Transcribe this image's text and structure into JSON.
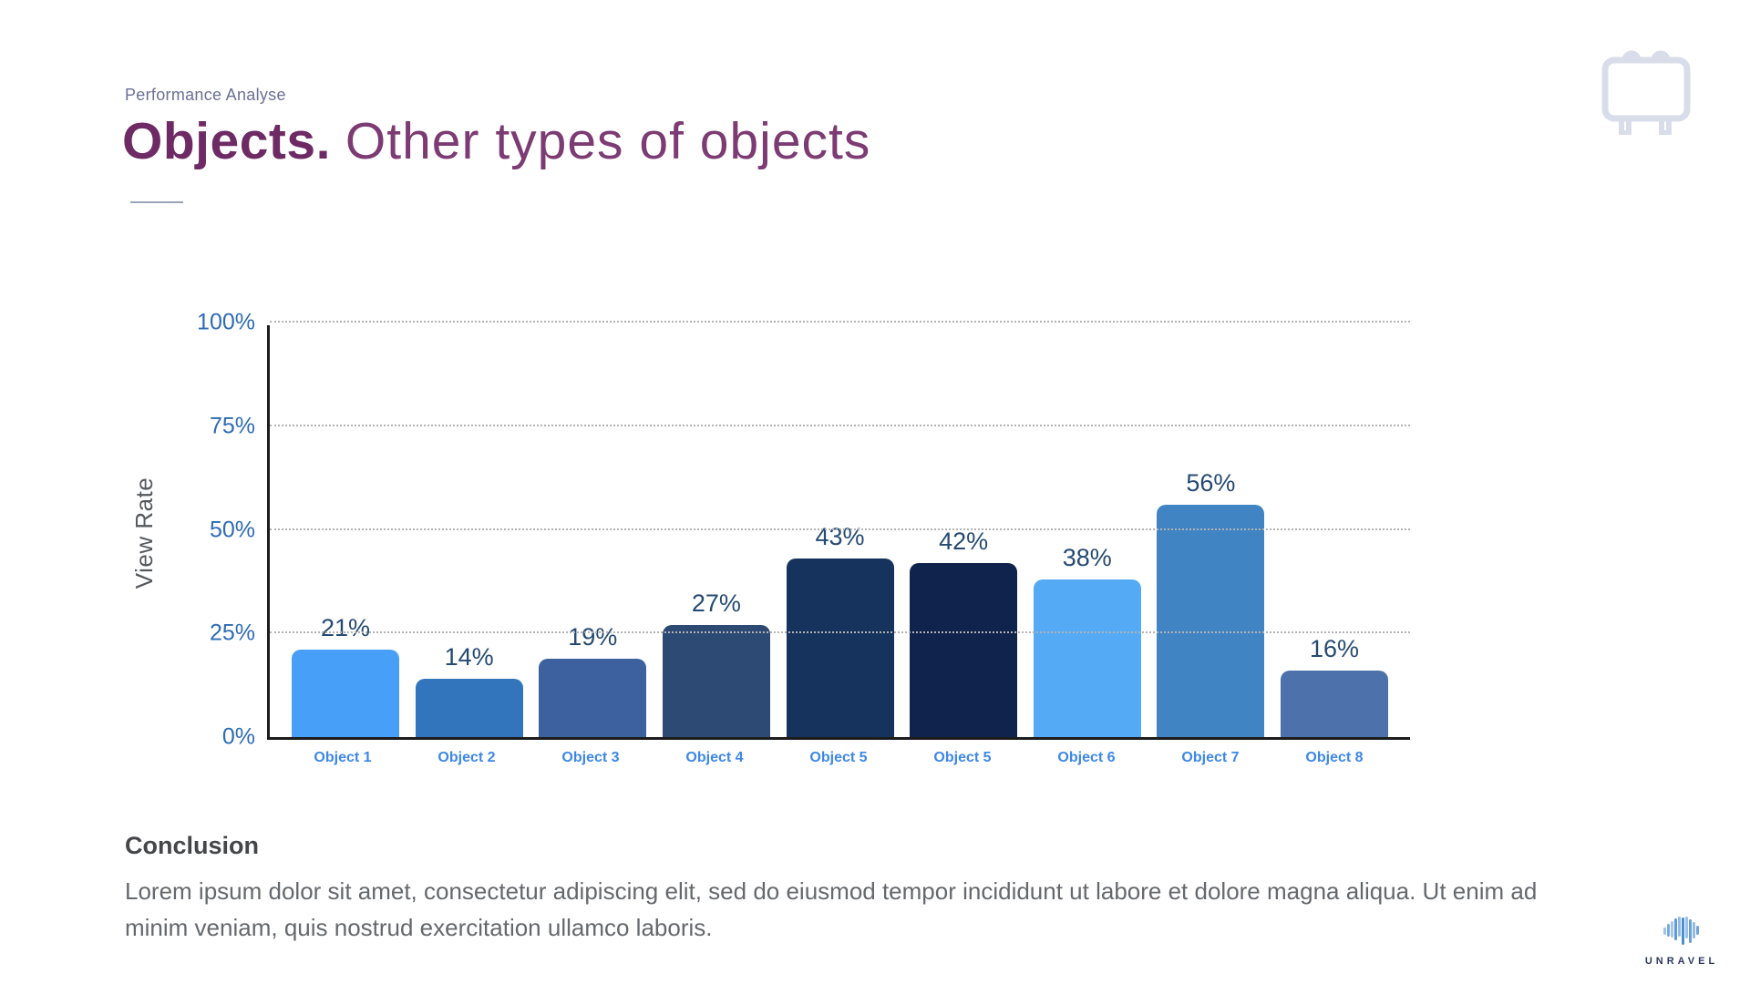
{
  "slide": {
    "eyebrow": "Performance Analyse",
    "title_bold": "Objects.",
    "title_light": "Other types of objects",
    "conclusion_heading": "Conclusion",
    "conclusion_body": "Lorem ipsum dolor sit amet, consectetur adipiscing elit, sed do eiusmod tempor incididunt ut labore et dolore magna aliqua. Ut enim ad minim veniam, quis nostrud exercitation ullamco laboris.",
    "logo_text": "UNRAVEL"
  },
  "icons": {
    "top_right": "whiteboard-icon",
    "bottom_right": "unravel-brain-icon"
  },
  "colors": {
    "background": "#ffffff",
    "title_bold": "#6e2a64",
    "title_light": "#7d3b74",
    "eyebrow": "#6b7094",
    "axis": "#1c1c1c",
    "gridline": "#b3b3b3",
    "ytick_label": "#2d6bb4",
    "value_label": "#254a72",
    "category_label": "#3d87e8",
    "y_axis_title": "#55585c",
    "icon_outline": "#d9dde9",
    "logo_text": "#2b3a5e"
  },
  "chart_data": {
    "type": "bar",
    "title": "",
    "categories": [
      "Object 1",
      "Object 2",
      "Object 3",
      "Object 4",
      "Object 5",
      "Object 5",
      "Object 6",
      "Object 7",
      "Object 8"
    ],
    "values": [
      21,
      14,
      19,
      27,
      43,
      42,
      38,
      56,
      16
    ],
    "value_labels": [
      "21%",
      "14%",
      "19%",
      "27%",
      "43%",
      "42%",
      "38%",
      "56%",
      "16%"
    ],
    "bar_colors": [
      "#479ff7",
      "#3375bd",
      "#3c619e",
      "#2c4a74",
      "#16335e",
      "#0f234d",
      "#55aaf5",
      "#4084c4",
      "#4d71ab"
    ],
    "xlabel": "",
    "ylabel": "View Rate",
    "ylim": [
      0,
      100
    ],
    "yticks": [
      0,
      25,
      50,
      75,
      100
    ],
    "ytick_labels": [
      "0%",
      "25%",
      "50%",
      "75%",
      "100%"
    ],
    "grid": "horizontal-dotted",
    "legend": "none"
  }
}
